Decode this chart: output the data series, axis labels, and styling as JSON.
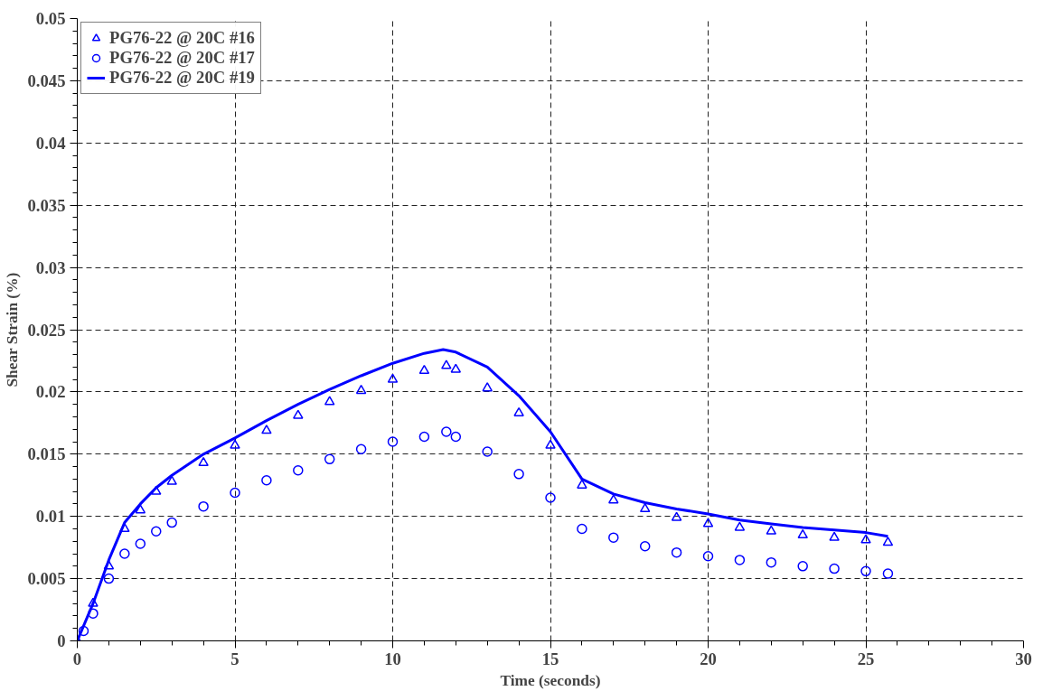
{
  "chart_data": {
    "type": "line",
    "xlabel": "Time (seconds)",
    "ylabel": "Shear Strain (%)",
    "xlim": [
      0,
      30
    ],
    "xticks": [
      0,
      5,
      10,
      15,
      20,
      25,
      30
    ],
    "ylim": [
      0,
      0.05
    ],
    "yticks": [
      0,
      0.005,
      0.01,
      0.015,
      0.02,
      0.025,
      0.03,
      0.035,
      0.04,
      0.045,
      0.05
    ],
    "grid": true,
    "legend": "top left",
    "series": [
      {
        "name": "PG76-22 @ 20C #16",
        "type": "scatter",
        "marker": "triangle",
        "color": "#0000ff",
        "x": [
          0,
          0.5,
          1,
          1.5,
          2,
          2.5,
          3,
          4,
          5,
          6,
          7,
          8,
          9,
          10,
          11,
          11.7,
          12,
          13,
          14,
          15,
          16,
          17,
          18,
          19,
          20,
          21,
          22,
          23,
          24,
          25,
          25.7
        ],
        "values": [
          0,
          0.003,
          0.006,
          0.009,
          0.0105,
          0.012,
          0.0128,
          0.0143,
          0.0157,
          0.0169,
          0.0181,
          0.0192,
          0.0201,
          0.021,
          0.0217,
          0.0221,
          0.0218,
          0.0203,
          0.0183,
          0.0157,
          0.0125,
          0.0113,
          0.0106,
          0.0099,
          0.0094,
          0.0091,
          0.0088,
          0.0085,
          0.0083,
          0.0081,
          0.0079
        ]
      },
      {
        "name": "PG76-22 @ 20C #17",
        "type": "scatter",
        "marker": "circle",
        "color": "#0000ff",
        "x": [
          0.2,
          0.5,
          1,
          1.5,
          2,
          2.5,
          3,
          4,
          5,
          6,
          7,
          8,
          9,
          10,
          11,
          11.7,
          12,
          13,
          14,
          15,
          16,
          17,
          18,
          19,
          20,
          21,
          22,
          23,
          24,
          25,
          25.7
        ],
        "values": [
          0.0008,
          0.0022,
          0.005,
          0.007,
          0.0078,
          0.0088,
          0.0095,
          0.0108,
          0.0119,
          0.0129,
          0.0137,
          0.0146,
          0.0154,
          0.016,
          0.0164,
          0.0168,
          0.0164,
          0.0152,
          0.0134,
          0.0115,
          0.009,
          0.0083,
          0.0076,
          0.0071,
          0.0068,
          0.0065,
          0.0063,
          0.006,
          0.0058,
          0.0056,
          0.0054
        ]
      },
      {
        "name": "PG76-22 @ 20C #19",
        "line_style": "solid",
        "color": "#0000ff",
        "x": [
          0,
          0.5,
          1,
          1.5,
          2,
          2.5,
          3,
          4,
          5,
          6,
          7,
          8,
          9,
          10,
          11,
          11.6,
          12,
          13,
          14,
          15,
          16,
          17,
          18,
          19,
          20,
          21,
          22,
          23,
          24,
          25,
          25.7
        ],
        "values": [
          0,
          0.003,
          0.0065,
          0.0095,
          0.011,
          0.0123,
          0.0133,
          0.015,
          0.0163,
          0.0177,
          0.019,
          0.0202,
          0.0213,
          0.0223,
          0.0231,
          0.0234,
          0.0232,
          0.022,
          0.0197,
          0.0168,
          0.013,
          0.0118,
          0.0111,
          0.0106,
          0.0102,
          0.0097,
          0.0094,
          0.0091,
          0.0089,
          0.0087,
          0.0084
        ]
      }
    ]
  }
}
